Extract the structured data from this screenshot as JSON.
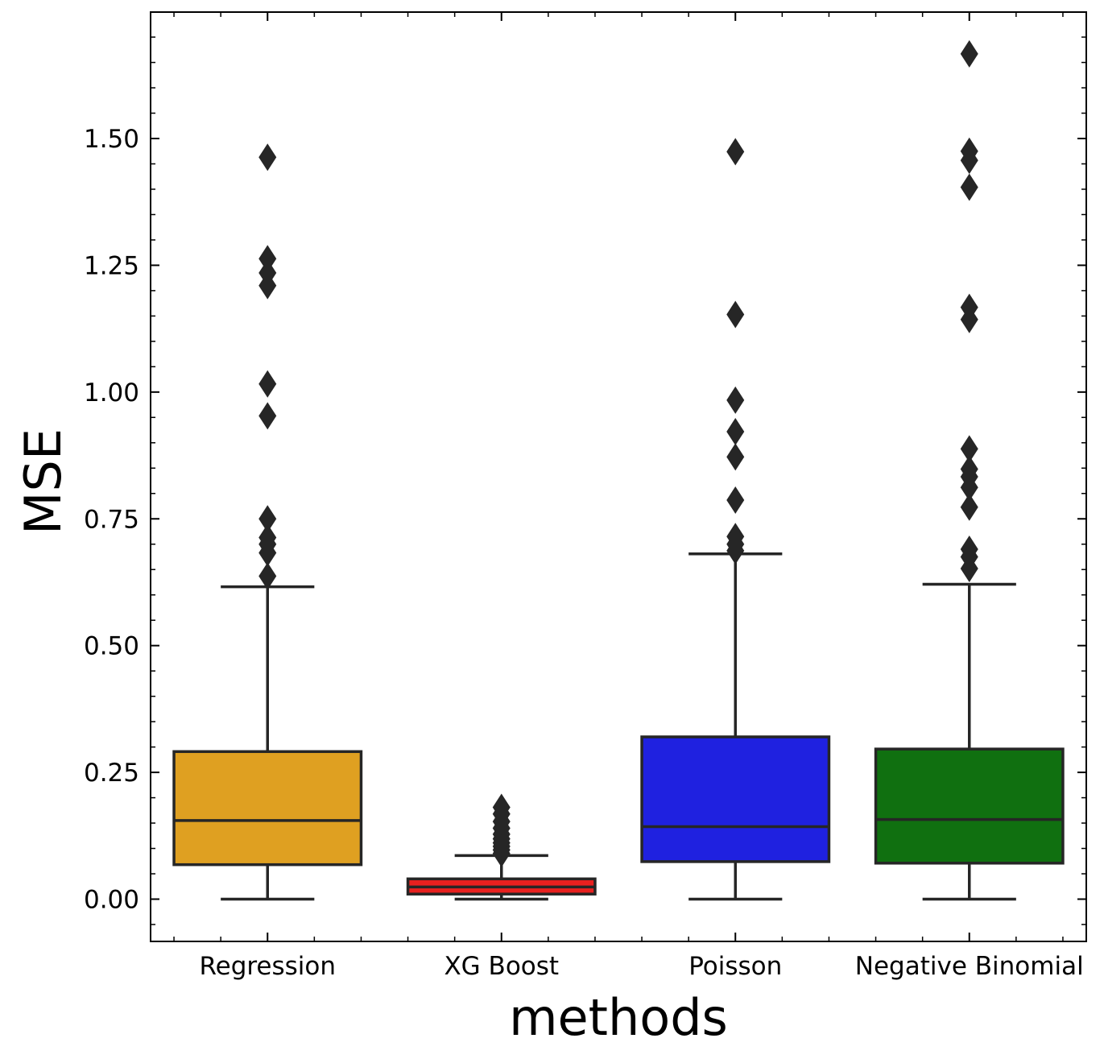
{
  "chart_data": {
    "type": "box",
    "xlabel": "methods",
    "ylabel": "MSE",
    "ylim": [
      -0.082,
      1.75
    ],
    "yticks": [
      0.0,
      0.25,
      0.5,
      0.75,
      1.0,
      1.25,
      1.5
    ],
    "ytick_labels": [
      "0.00",
      "0.25",
      "0.50",
      "0.75",
      "1.00",
      "1.25",
      "1.50"
    ],
    "categories": [
      "Regression",
      "XG Boost",
      "Poisson",
      "Negative Binomial"
    ],
    "grid": false,
    "legend": "none",
    "boxes": [
      {
        "name": "Regression",
        "color": "#dfa021",
        "whisker_low": 0.0,
        "q1": 0.068,
        "median": 0.155,
        "q3": 0.291,
        "whisker_high": 0.616,
        "outliers": [
          0.637,
          0.683,
          0.7,
          0.713,
          0.75,
          0.953,
          1.016,
          1.21,
          1.235,
          1.263,
          1.463
        ]
      },
      {
        "name": "XG Boost",
        "color": "#e8201f",
        "whisker_low": 0.0,
        "q1": 0.01,
        "median": 0.024,
        "q3": 0.04,
        "whisker_high": 0.086,
        "outliers": [
          0.09,
          0.097,
          0.104,
          0.111,
          0.119,
          0.128,
          0.14,
          0.153,
          0.168,
          0.181
        ]
      },
      {
        "name": "Poisson",
        "color": "#1f21e0",
        "whisker_low": 0.0,
        "q1": 0.074,
        "median": 0.143,
        "q3": 0.32,
        "whisker_high": 0.681,
        "outliers": [
          0.687,
          0.7,
          0.715,
          0.787,
          0.872,
          0.922,
          0.984,
          1.153,
          1.474
        ]
      },
      {
        "name": "Negative Binomial",
        "color": "#107010",
        "whisker_low": 0.0,
        "q1": 0.071,
        "median": 0.157,
        "q3": 0.296,
        "whisker_high": 0.621,
        "outliers": [
          0.652,
          0.675,
          0.69,
          0.773,
          0.812,
          0.833,
          0.848,
          0.888,
          1.143,
          1.167,
          1.404,
          1.457,
          1.475,
          1.667
        ]
      }
    ],
    "line_color": "#262626"
  }
}
